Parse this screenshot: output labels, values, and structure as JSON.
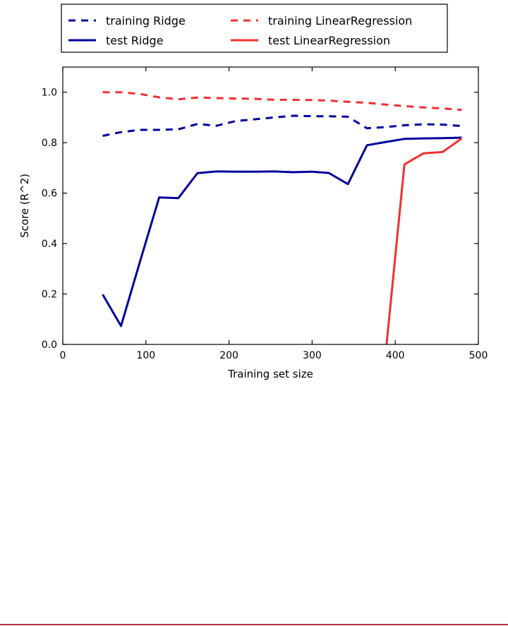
{
  "chart_data": {
    "type": "line",
    "title": "",
    "xlabel": "Training set size",
    "ylabel": "Score (R^2)",
    "xlim": [
      0,
      500
    ],
    "ylim": [
      0,
      1.1
    ],
    "xticks": [
      0,
      100,
      200,
      300,
      400,
      500
    ],
    "yticks": [
      0.0,
      0.2,
      0.4,
      0.6,
      0.8,
      1.0
    ],
    "xtick_labels": [
      "0",
      "100",
      "200",
      "300",
      "400",
      "500"
    ],
    "ytick_labels": [
      "0.0",
      "0.2",
      "0.4",
      "0.6",
      "0.8",
      "1.0"
    ],
    "grid": false,
    "legend_position": "above plot",
    "legend_columns": 2,
    "series": [
      {
        "name": "training Ridge",
        "color": "#00009e",
        "style": "dashed",
        "x": [
          48,
          70,
          93,
          116,
          139,
          162,
          185,
          208,
          231,
          254,
          277,
          300,
          320,
          343,
          366,
          389,
          411,
          434,
          457,
          480
        ],
        "y": [
          0.827,
          0.842,
          0.851,
          0.851,
          0.853,
          0.874,
          0.867,
          0.886,
          0.893,
          0.9,
          0.907,
          0.905,
          0.905,
          0.903,
          0.857,
          0.862,
          0.869,
          0.873,
          0.872,
          0.866
        ]
      },
      {
        "name": "test Ridge",
        "color": "#00009e",
        "style": "solid",
        "x": [
          48,
          70,
          93,
          116,
          139,
          162,
          185,
          208,
          231,
          254,
          277,
          300,
          320,
          343,
          366,
          389,
          411,
          434,
          457,
          480
        ],
        "y": [
          0.198,
          0.073,
          0.33,
          0.583,
          0.58,
          0.679,
          0.686,
          0.685,
          0.685,
          0.686,
          0.683,
          0.685,
          0.68,
          0.636,
          0.79,
          0.803,
          0.815,
          0.817,
          0.818,
          0.82
        ]
      },
      {
        "name": "training LinearRegression",
        "color": "#f03030",
        "style": "dashed",
        "x": [
          48,
          70,
          93,
          116,
          139,
          162,
          185,
          208,
          231,
          254,
          277,
          300,
          320,
          343,
          366,
          389,
          411,
          434,
          457,
          480
        ],
        "y": [
          1.0,
          1.0,
          0.993,
          0.98,
          0.972,
          0.979,
          0.977,
          0.975,
          0.974,
          0.97,
          0.97,
          0.969,
          0.967,
          0.962,
          0.958,
          0.951,
          0.945,
          0.94,
          0.936,
          0.93
        ]
      },
      {
        "name": "test LinearRegression",
        "color": "#f03030",
        "style": "solid",
        "x": [
          388,
          411,
          434,
          457,
          480
        ],
        "y": [
          -0.05,
          0.714,
          0.758,
          0.763,
          0.817
        ]
      }
    ]
  }
}
